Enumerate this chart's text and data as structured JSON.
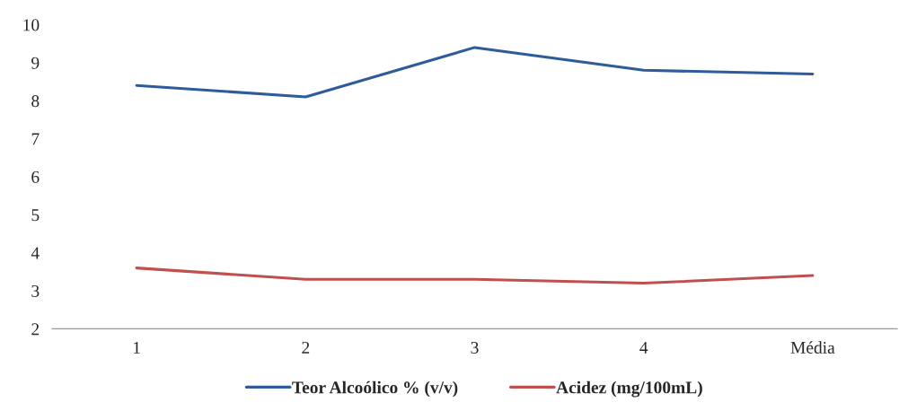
{
  "chart_data": {
    "type": "line",
    "categories": [
      "1",
      "2",
      "3",
      "4",
      "Média"
    ],
    "series": [
      {
        "name": "Teor Alcoólico % (v/v)",
        "color": "#2e5c9a",
        "values": [
          8.4,
          8.1,
          9.4,
          8.8,
          8.7
        ]
      },
      {
        "name": "Acidez (mg/100mL)",
        "color": "#c0504d",
        "values": [
          3.6,
          3.3,
          3.3,
          3.2,
          3.4
        ]
      }
    ],
    "ylim": [
      2,
      10
    ],
    "yticks": [
      2,
      3,
      4,
      5,
      6,
      7,
      8,
      9,
      10
    ],
    "grid": false,
    "legend": "bottom",
    "marker": "none",
    "line_style": "solid"
  }
}
